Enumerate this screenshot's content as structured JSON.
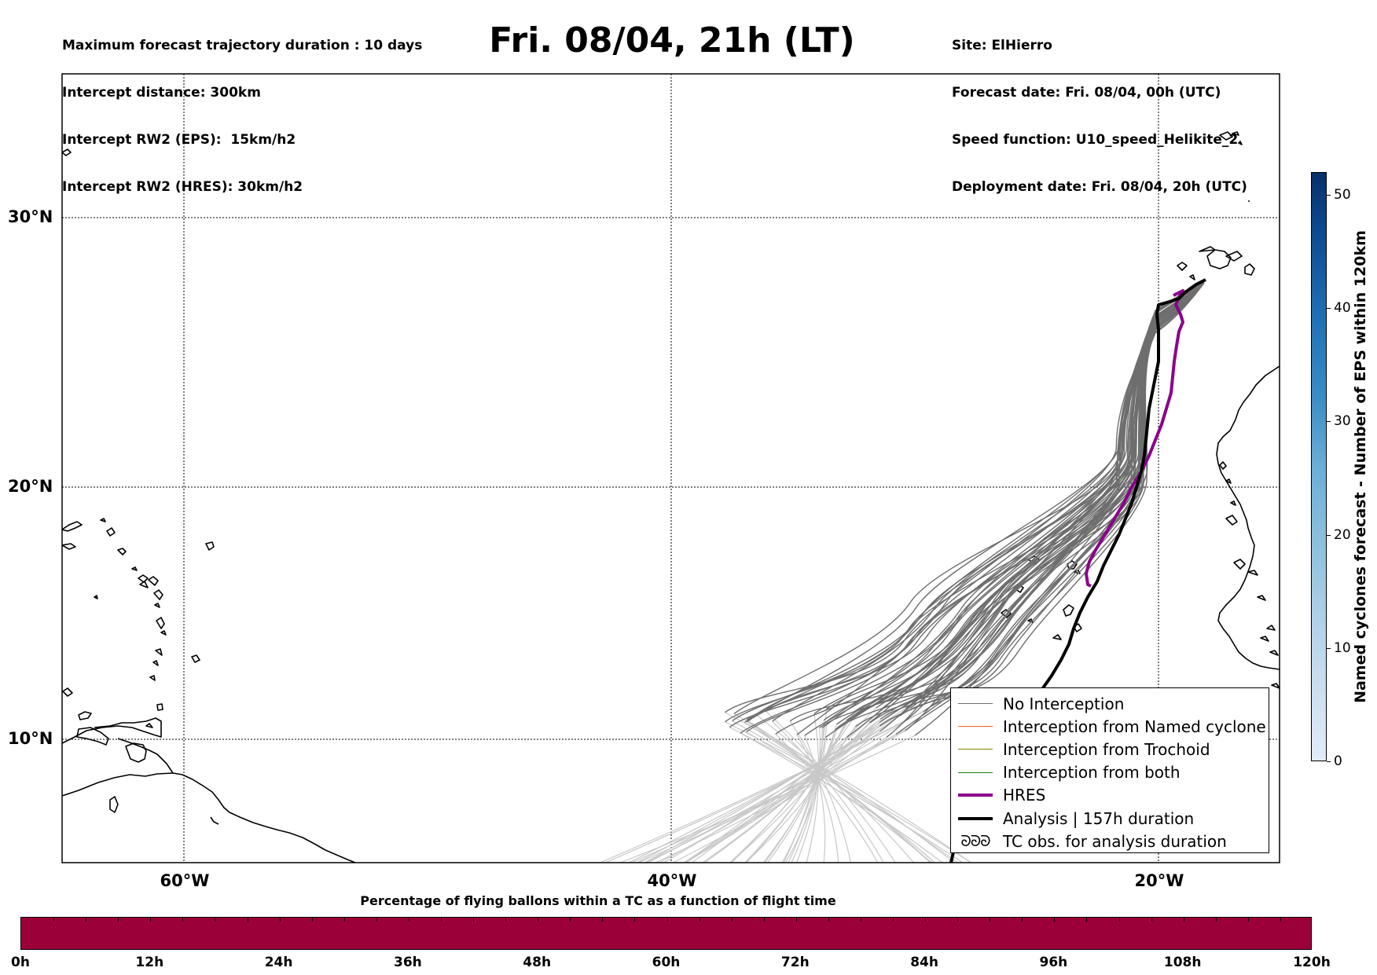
{
  "header": {
    "left_lines": [
      "Maximum forecast trajectory duration : 10 days",
      "Intercept distance: 300km",
      "Intercept RW2 (EPS):  15km/h2",
      "Intercept RW2 (HRES): 30km/h2"
    ],
    "title": "Fri. 08/04, 21h (LT)",
    "right_lines": [
      "Site: ElHierro",
      "Forecast date: Fri. 08/04, 00h (UTC)",
      "Speed function: U10_speed_Helikite_2",
      "Deployment date: Fri. 08/04, 20h (UTC)"
    ]
  },
  "map": {
    "lat_labels": [
      "30°N",
      "20°N",
      "10°N"
    ],
    "lon_labels": [
      "60°W",
      "40°W",
      "20°W"
    ],
    "colors": {
      "no_interception": "#6e6e6e",
      "faded_tracks": "#c8c8c8",
      "named_cyclone": "#ff5a1f",
      "trochoid": "#808000",
      "both": "#1a7f1a",
      "hres": "#8b008b",
      "analysis": "#000000",
      "coastline": "#000000"
    }
  },
  "legend": {
    "items": [
      {
        "label": "No Interception",
        "color": "#6e6e6e",
        "width": 1.5
      },
      {
        "label": "Interception from Named cyclone",
        "color": "#ff5a1f",
        "width": 1.5
      },
      {
        "label": "Interception from Trochoid",
        "color": "#808000",
        "width": 1.5
      },
      {
        "label": "Interception from both",
        "color": "#1a7f1a",
        "width": 1.5
      },
      {
        "label": "HRES",
        "color": "#8b008b",
        "width": 4
      },
      {
        "label": "Analysis | 157h duration",
        "color": "#000000",
        "width": 4
      }
    ],
    "tc_symbol": "ᘐᘐᘐ",
    "tc_label": "TC obs. for analysis duration"
  },
  "time_colorbar": {
    "title": "Percentage of flying ballons within a TC as a function of flight time",
    "ticks": [
      "0h",
      "12h",
      "24h",
      "36h",
      "48h",
      "60h",
      "72h",
      "84h",
      "96h",
      "108h",
      "120h"
    ],
    "color": "#9b0039"
  },
  "eps_colorbar": {
    "label": "Named cyclones forecast - Number of EPS within 120km",
    "ticks": [
      "0",
      "10",
      "20",
      "30",
      "40",
      "50"
    ],
    "range": [
      0,
      52
    ]
  }
}
